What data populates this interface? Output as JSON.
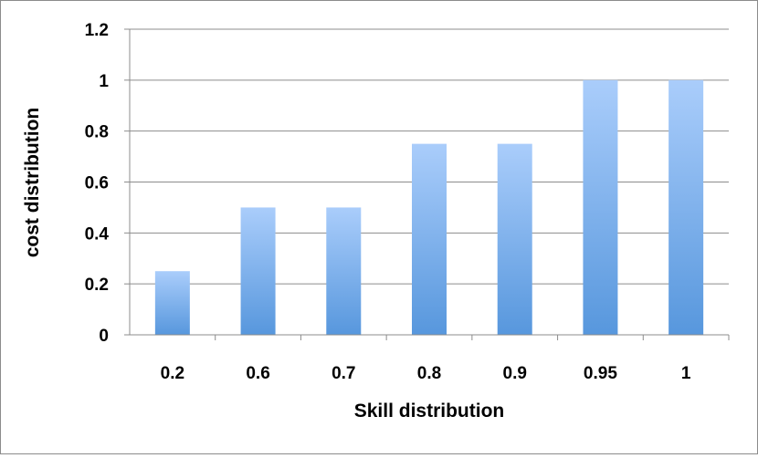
{
  "chart_data": {
    "type": "bar",
    "title": "",
    "xlabel": "Skill distribution",
    "ylabel": "cost distribution",
    "categories": [
      "0.2",
      "0.6",
      "0.7",
      "0.8",
      "0.9",
      "0.95",
      "1"
    ],
    "series": [
      {
        "values": [
          0.25,
          0.5,
          0.5,
          0.75,
          0.75,
          1,
          1
        ]
      }
    ],
    "ylim": [
      0,
      1.2
    ],
    "yticks": [
      "0",
      "0.2",
      "0.4",
      "0.6",
      "0.8",
      "1",
      "1.2"
    ],
    "grid": true,
    "legend": "none",
    "colors": {
      "bar_top": "#aacdfb",
      "bar_bottom": "#5797dd",
      "grid": "#8c8c8c",
      "axis": "#8c8c8c"
    }
  }
}
